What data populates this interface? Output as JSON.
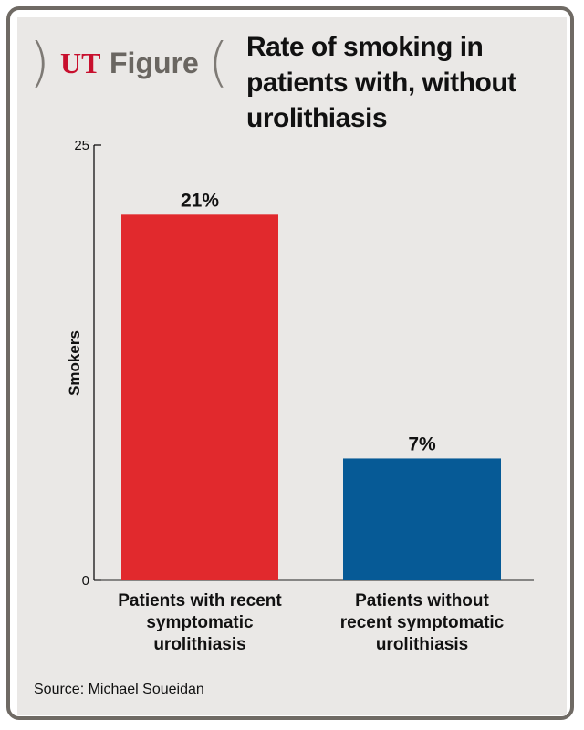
{
  "header": {
    "logo_ut": "UT",
    "logo_figure": "Figure",
    "title_lines": [
      "Rate of smoking in",
      "patients with, without",
      "urolithiasis"
    ]
  },
  "chart_data": {
    "type": "bar",
    "categories": [
      [
        "Patients with recent",
        "symptomatic",
        "urolithiasis"
      ],
      [
        "Patients without",
        "recent symptomatic",
        "urolithiasis"
      ]
    ],
    "values": [
      21,
      7
    ],
    "value_labels": [
      "21%",
      "7%"
    ],
    "colors": [
      "#e1292d",
      "#065a96"
    ],
    "ylabel": "Smokers",
    "ylim": [
      0,
      25
    ],
    "yticks": [
      "0",
      "25"
    ],
    "grid": false
  },
  "footer": {
    "source": "Source: Michael Soueidan"
  }
}
